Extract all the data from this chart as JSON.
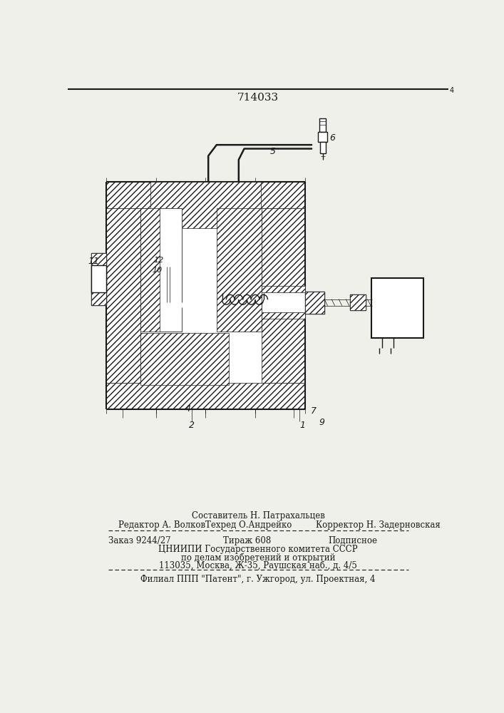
{
  "title": "714033",
  "bg_color": "#f0f0eb",
  "line_color": "#1a1a1a",
  "footer": {
    "composer": "Составитель Н. Патрахальцев",
    "editor": "Редактор А. Волков",
    "techred": "Техред О.Андрейко",
    "corrector": "Корректор Н. Задерновская",
    "order": "Заказ 9244/27",
    "tirazh": "Тираж 608",
    "podpisnoe": "Подписное",
    "cniip1": "ЦНИИПИ Государственного комитета СССР",
    "cniip2": "по делам изобретений и открытий",
    "cniip3": "113035, Москва, Ж-35, Раушская наб., д. 4/5",
    "filial": "Филиал ППП \"Патент\", г. Ужгород, ул. Проектная, 4"
  }
}
